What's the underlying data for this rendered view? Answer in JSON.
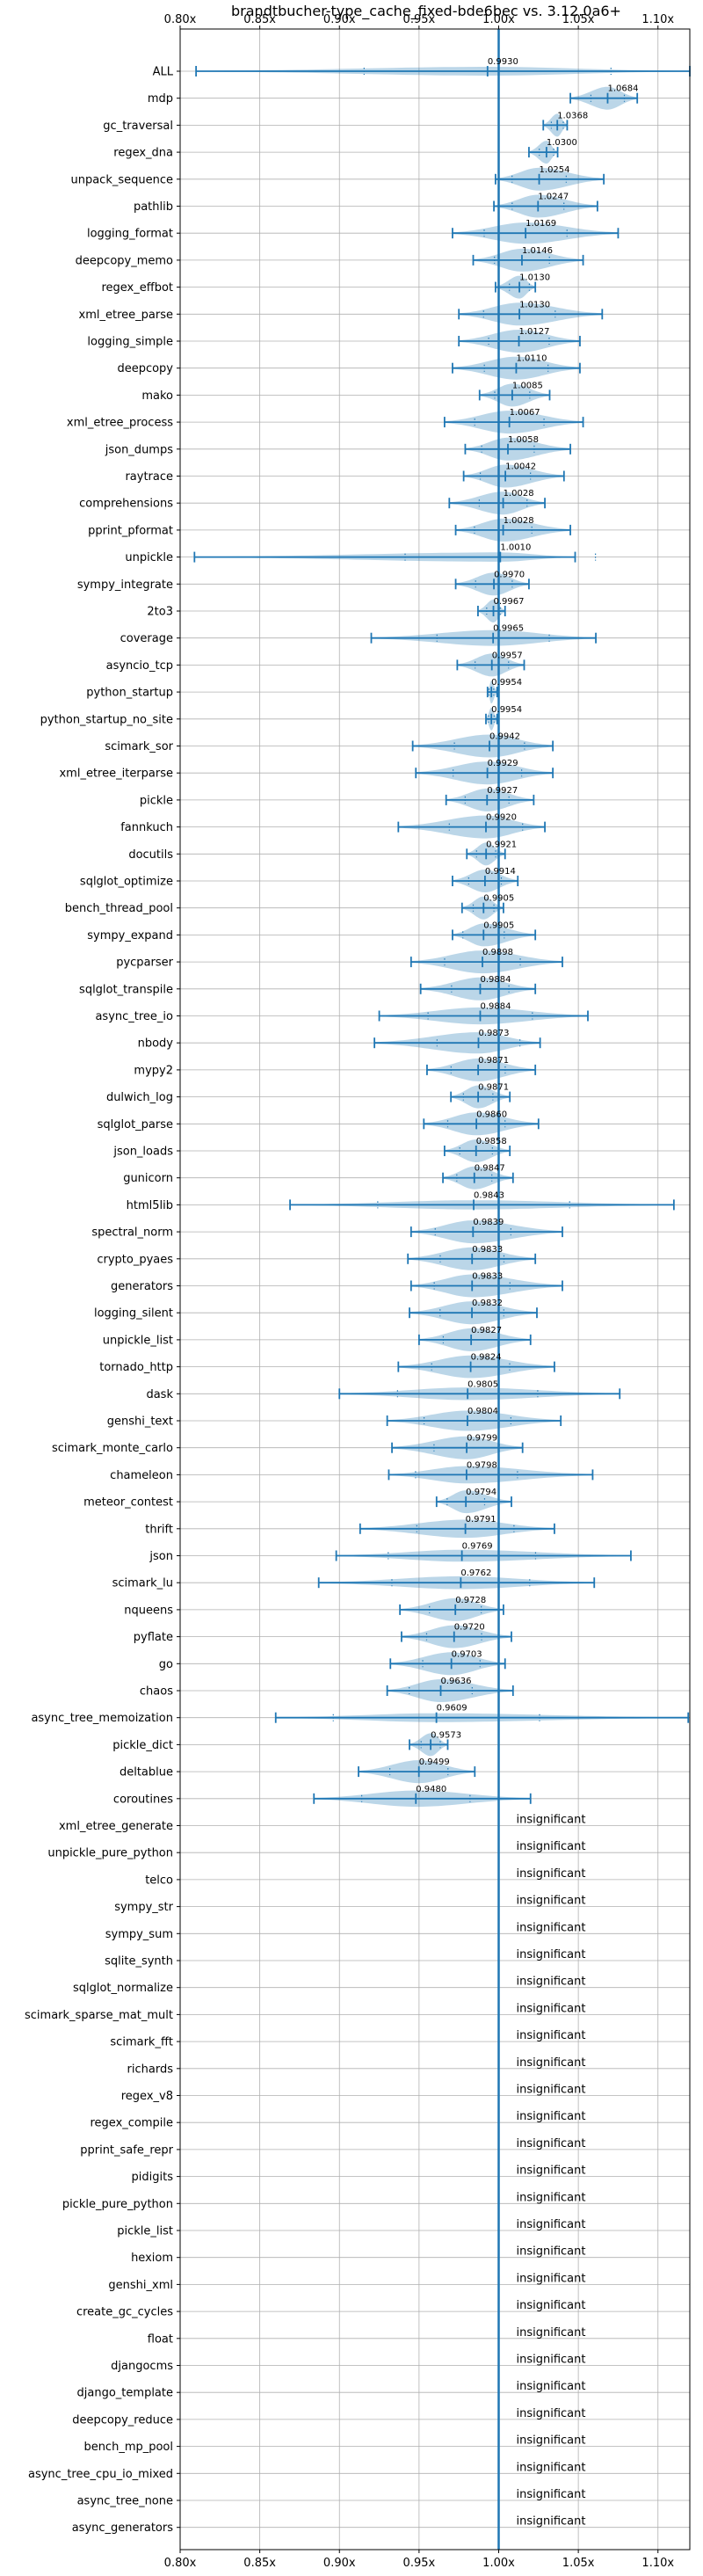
{
  "chart_data": {
    "type": "violin",
    "title": "brandtbucher-type_cache_fixed-bde6bec vs. 3.12.0a6+",
    "xlabel": "",
    "ylabel": "",
    "xlim": [
      0.8,
      1.12
    ],
    "xticks": [
      0.8,
      0.85,
      0.9,
      0.95,
      1.0,
      1.05,
      1.1
    ],
    "xtick_labels": [
      "0.80x",
      "0.85x",
      "0.90x",
      "0.95x",
      "1.00x",
      "1.05x",
      "1.10x"
    ],
    "baseline": 1.0,
    "grid": true,
    "insignificant_label": "insignificant",
    "benchmarks": [
      {
        "name": "ALL",
        "median": 0.993,
        "label": "0.9930",
        "min": 0.81,
        "max": 1.12
      },
      {
        "name": "mdp",
        "median": 1.0684,
        "label": "1.0684",
        "min": 1.045,
        "max": 1.087
      },
      {
        "name": "gc_traversal",
        "median": 1.0368,
        "label": "1.0368",
        "min": 1.028,
        "max": 1.043
      },
      {
        "name": "regex_dna",
        "median": 1.03,
        "label": "1.0300",
        "min": 1.019,
        "max": 1.037
      },
      {
        "name": "unpack_sequence",
        "median": 1.0254,
        "label": "1.0254",
        "min": 0.998,
        "max": 1.066
      },
      {
        "name": "pathlib",
        "median": 1.0247,
        "label": "1.0247",
        "min": 0.997,
        "max": 1.062
      },
      {
        "name": "logging_format",
        "median": 1.0169,
        "label": "1.0169",
        "min": 0.971,
        "max": 1.075
      },
      {
        "name": "deepcopy_memo",
        "median": 1.0146,
        "label": "1.0146",
        "min": 0.984,
        "max": 1.053
      },
      {
        "name": "regex_effbot",
        "median": 1.013,
        "label": "1.0130",
        "min": 0.998,
        "max": 1.023
      },
      {
        "name": "xml_etree_parse",
        "median": 1.013,
        "label": "1.0130",
        "min": 0.975,
        "max": 1.065
      },
      {
        "name": "logging_simple",
        "median": 1.0127,
        "label": "1.0127",
        "min": 0.975,
        "max": 1.051
      },
      {
        "name": "deepcopy",
        "median": 1.011,
        "label": "1.0110",
        "min": 0.971,
        "max": 1.051
      },
      {
        "name": "mako",
        "median": 1.0085,
        "label": "1.0085",
        "min": 0.988,
        "max": 1.032
      },
      {
        "name": "xml_etree_process",
        "median": 1.0067,
        "label": "1.0067",
        "min": 0.966,
        "max": 1.053
      },
      {
        "name": "json_dumps",
        "median": 1.0058,
        "label": "1.0058",
        "min": 0.979,
        "max": 1.045
      },
      {
        "name": "raytrace",
        "median": 1.0042,
        "label": "1.0042",
        "min": 0.978,
        "max": 1.041
      },
      {
        "name": "comprehensions",
        "median": 1.0028,
        "label": "1.0028",
        "min": 0.969,
        "max": 1.029
      },
      {
        "name": "pprint_pformat",
        "median": 1.0028,
        "label": "1.0028",
        "min": 0.973,
        "max": 1.045
      },
      {
        "name": "unpickle",
        "median": 1.001,
        "label": "1.0010",
        "min": 0.809,
        "max": 1.048
      },
      {
        "name": "sympy_integrate",
        "median": 0.997,
        "label": "0.9970",
        "min": 0.973,
        "max": 1.019
      },
      {
        "name": "2to3",
        "median": 0.9967,
        "label": "0.9967",
        "min": 0.987,
        "max": 1.004
      },
      {
        "name": "coverage",
        "median": 0.9965,
        "label": "0.9965",
        "min": 0.92,
        "max": 1.061
      },
      {
        "name": "asyncio_tcp",
        "median": 0.9957,
        "label": "0.9957",
        "min": 0.974,
        "max": 1.016
      },
      {
        "name": "python_startup",
        "median": 0.9954,
        "label": "0.9954",
        "min": 0.993,
        "max": 0.999
      },
      {
        "name": "python_startup_no_site",
        "median": 0.9954,
        "label": "0.9954",
        "min": 0.992,
        "max": 0.999
      },
      {
        "name": "scimark_sor",
        "median": 0.9942,
        "label": "0.9942",
        "min": 0.946,
        "max": 1.034
      },
      {
        "name": "xml_etree_iterparse",
        "median": 0.9929,
        "label": "0.9929",
        "min": 0.948,
        "max": 1.034
      },
      {
        "name": "pickle",
        "median": 0.9927,
        "label": "0.9927",
        "min": 0.967,
        "max": 1.022
      },
      {
        "name": "fannkuch",
        "median": 0.992,
        "label": "0.9920",
        "min": 0.937,
        "max": 1.029
      },
      {
        "name": "docutils",
        "median": 0.9921,
        "label": "0.9921",
        "min": 0.98,
        "max": 1.004
      },
      {
        "name": "sqlglot_optimize",
        "median": 0.9914,
        "label": "0.9914",
        "min": 0.971,
        "max": 1.012
      },
      {
        "name": "bench_thread_pool",
        "median": 0.9905,
        "label": "0.9905",
        "min": 0.977,
        "max": 1.003
      },
      {
        "name": "sympy_expand",
        "median": 0.9905,
        "label": "0.9905",
        "min": 0.971,
        "max": 1.023
      },
      {
        "name": "pycparser",
        "median": 0.9898,
        "label": "0.9898",
        "min": 0.945,
        "max": 1.04
      },
      {
        "name": "sqlglot_transpile",
        "median": 0.9884,
        "label": "0.9884",
        "min": 0.951,
        "max": 1.023
      },
      {
        "name": "async_tree_io",
        "median": 0.9884,
        "label": "0.9884",
        "min": 0.925,
        "max": 1.056
      },
      {
        "name": "nbody",
        "median": 0.9873,
        "label": "0.9873",
        "min": 0.922,
        "max": 1.026
      },
      {
        "name": "mypy2",
        "median": 0.9871,
        "label": "0.9871",
        "min": 0.955,
        "max": 1.023
      },
      {
        "name": "dulwich_log",
        "median": 0.9871,
        "label": "0.9871",
        "min": 0.97,
        "max": 1.007
      },
      {
        "name": "sqlglot_parse",
        "median": 0.986,
        "label": "0.9860",
        "min": 0.953,
        "max": 1.025
      },
      {
        "name": "json_loads",
        "median": 0.9858,
        "label": "0.9858",
        "min": 0.966,
        "max": 1.007
      },
      {
        "name": "gunicorn",
        "median": 0.9847,
        "label": "0.9847",
        "min": 0.965,
        "max": 1.009
      },
      {
        "name": "html5lib",
        "median": 0.9843,
        "label": "0.9843",
        "min": 0.869,
        "max": 1.11
      },
      {
        "name": "spectral_norm",
        "median": 0.9839,
        "label": "0.9839",
        "min": 0.945,
        "max": 1.04
      },
      {
        "name": "crypto_pyaes",
        "median": 0.9833,
        "label": "0.9833",
        "min": 0.943,
        "max": 1.023
      },
      {
        "name": "generators",
        "median": 0.9833,
        "label": "0.9833",
        "min": 0.945,
        "max": 1.04
      },
      {
        "name": "logging_silent",
        "median": 0.9832,
        "label": "0.9832",
        "min": 0.944,
        "max": 1.024
      },
      {
        "name": "unpickle_list",
        "median": 0.9827,
        "label": "0.9827",
        "min": 0.95,
        "max": 1.02
      },
      {
        "name": "tornado_http",
        "median": 0.9824,
        "label": "0.9824",
        "min": 0.937,
        "max": 1.035
      },
      {
        "name": "dask",
        "median": 0.9805,
        "label": "0.9805",
        "min": 0.9,
        "max": 1.076
      },
      {
        "name": "genshi_text",
        "median": 0.9804,
        "label": "0.9804",
        "min": 0.93,
        "max": 1.039
      },
      {
        "name": "scimark_monte_carlo",
        "median": 0.9799,
        "label": "0.9799",
        "min": 0.933,
        "max": 1.015
      },
      {
        "name": "chameleon",
        "median": 0.9798,
        "label": "0.9798",
        "min": 0.931,
        "max": 1.059
      },
      {
        "name": "meteor_contest",
        "median": 0.9794,
        "label": "0.9794",
        "min": 0.961,
        "max": 1.008
      },
      {
        "name": "thrift",
        "median": 0.9791,
        "label": "0.9791",
        "min": 0.913,
        "max": 1.035
      },
      {
        "name": "json",
        "median": 0.9769,
        "label": "0.9769",
        "min": 0.898,
        "max": 1.083
      },
      {
        "name": "scimark_lu",
        "median": 0.9762,
        "label": "0.9762",
        "min": 0.887,
        "max": 1.06
      },
      {
        "name": "nqueens",
        "median": 0.9728,
        "label": "0.9728",
        "min": 0.938,
        "max": 1.003
      },
      {
        "name": "pyflate",
        "median": 0.972,
        "label": "0.9720",
        "min": 0.939,
        "max": 1.008
      },
      {
        "name": "go",
        "median": 0.9703,
        "label": "0.9703",
        "min": 0.932,
        "max": 1.004
      },
      {
        "name": "chaos",
        "median": 0.9636,
        "label": "0.9636",
        "min": 0.93,
        "max": 1.009
      },
      {
        "name": "async_tree_memoization",
        "median": 0.9609,
        "label": "0.9609",
        "min": 0.86,
        "max": 1.119
      },
      {
        "name": "pickle_dict",
        "median": 0.9573,
        "label": "0.9573",
        "min": 0.944,
        "max": 0.968
      },
      {
        "name": "deltablue",
        "median": 0.9499,
        "label": "0.9499",
        "min": 0.912,
        "max": 0.985
      },
      {
        "name": "coroutines",
        "median": 0.948,
        "label": "0.9480",
        "min": 0.884,
        "max": 1.02
      },
      {
        "name": "xml_etree_generate",
        "insignificant": true
      },
      {
        "name": "unpickle_pure_python",
        "insignificant": true
      },
      {
        "name": "telco",
        "insignificant": true
      },
      {
        "name": "sympy_str",
        "insignificant": true
      },
      {
        "name": "sympy_sum",
        "insignificant": true
      },
      {
        "name": "sqlite_synth",
        "insignificant": true
      },
      {
        "name": "sqlglot_normalize",
        "insignificant": true
      },
      {
        "name": "scimark_sparse_mat_mult",
        "insignificant": true
      },
      {
        "name": "scimark_fft",
        "insignificant": true
      },
      {
        "name": "richards",
        "insignificant": true
      },
      {
        "name": "regex_v8",
        "insignificant": true
      },
      {
        "name": "regex_compile",
        "insignificant": true
      },
      {
        "name": "pprint_safe_repr",
        "insignificant": true
      },
      {
        "name": "pidigits",
        "insignificant": true
      },
      {
        "name": "pickle_pure_python",
        "insignificant": true
      },
      {
        "name": "pickle_list",
        "insignificant": true
      },
      {
        "name": "hexiom",
        "insignificant": true
      },
      {
        "name": "genshi_xml",
        "insignificant": true
      },
      {
        "name": "create_gc_cycles",
        "insignificant": true
      },
      {
        "name": "float",
        "insignificant": true
      },
      {
        "name": "djangocms",
        "insignificant": true
      },
      {
        "name": "django_template",
        "insignificant": true
      },
      {
        "name": "deepcopy_reduce",
        "insignificant": true
      },
      {
        "name": "bench_mp_pool",
        "insignificant": true
      },
      {
        "name": "async_tree_cpu_io_mixed",
        "insignificant": true
      },
      {
        "name": "async_tree_none",
        "insignificant": true
      },
      {
        "name": "async_generators",
        "insignificant": true
      }
    ]
  }
}
